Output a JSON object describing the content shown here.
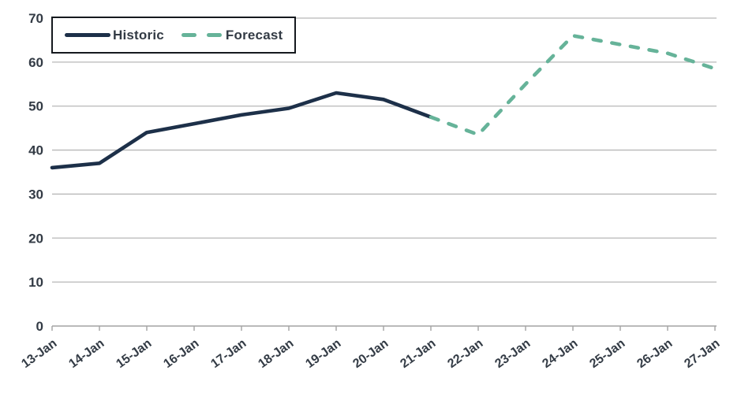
{
  "chart_data": {
    "type": "line",
    "title": "",
    "xlabel": "",
    "ylabel": "",
    "categories": [
      "13-Jan",
      "14-Jan",
      "15-Jan",
      "16-Jan",
      "17-Jan",
      "18-Jan",
      "19-Jan",
      "20-Jan",
      "21-Jan",
      "22-Jan",
      "23-Jan",
      "24-Jan",
      "25-Jan",
      "26-Jan",
      "27-Jan"
    ],
    "series": [
      {
        "name": "Historic",
        "style": "solid",
        "color": "#1d3049",
        "start_index": 0,
        "values": [
          36,
          37,
          44,
          46,
          48,
          49.5,
          53,
          51.5,
          47.5
        ]
      },
      {
        "name": "Forecast",
        "style": "dashed",
        "color": "#66b399",
        "start_index": 8,
        "values": [
          47.5,
          43.5,
          55,
          66,
          64,
          62,
          58.5
        ]
      }
    ],
    "ylim": [
      0,
      70
    ],
    "ytick_interval": 10,
    "grid": "horizontal",
    "legend_position": "top-left",
    "colors": {
      "gridline": "#b7b7b7",
      "axis_line": "#a3a3a3",
      "tick_label": "#333b45",
      "legend_border": "#15191e",
      "background": "#ffffff"
    }
  }
}
